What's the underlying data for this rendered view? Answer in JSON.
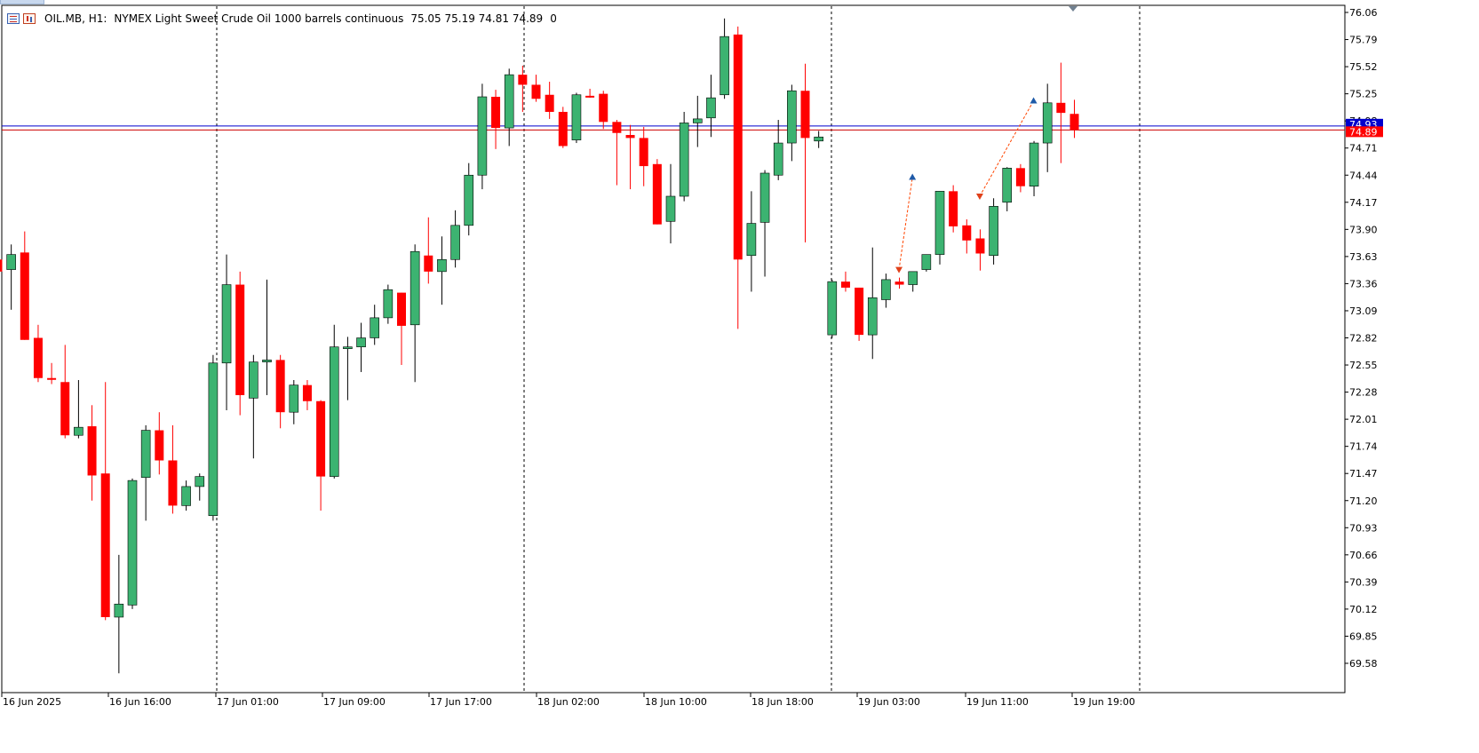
{
  "header": {
    "symbol": "OIL.MB, H1:",
    "description": "NYMEX Light Sweet Crude Oil 1000 barrels continuous",
    "ohlc": "75.05 75.19 74.81 74.89",
    "volume": "0",
    "icons": [
      "one-click-trading-icon",
      "chart-type-icon"
    ]
  },
  "colors": {
    "bull": "#3cb371",
    "bear": "#ff0000",
    "bid_line": "#0000cd",
    "ask_line": "#cd0000",
    "grid": "#000000",
    "trade_line": "#ff4500",
    "buy_arrow": "#1e5aa8",
    "sell_arrow": "#e0401a"
  },
  "chart_data": {
    "type": "candlestick",
    "timeframe": "H1",
    "symbol": "OIL.MB",
    "ylim": [
      69.34,
      76.06
    ],
    "y_ticks": [
      "76.06",
      "75.79",
      "75.52",
      "75.25",
      "74.98",
      "74.71",
      "74.44",
      "74.17",
      "73.90",
      "73.63",
      "73.36",
      "73.09",
      "72.82",
      "72.55",
      "72.28",
      "72.01",
      "71.74",
      "71.47",
      "71.20",
      "70.93",
      "70.66",
      "70.39",
      "70.12",
      "69.85",
      "69.58"
    ],
    "x_labels": [
      "16 Jun 2025",
      "16 Jun 16:00",
      "17 Jun 01:00",
      "17 Jun 09:00",
      "17 Jun 17:00",
      "18 Jun 02:00",
      "18 Jun 10:00",
      "18 Jun 18:00",
      "19 Jun 03:00",
      "19 Jun 11:00",
      "19 Jun 19:00"
    ],
    "day_separators": [
      "17 Jun",
      "18 Jun",
      "19 Jun",
      "20 Jun"
    ],
    "price_labels": {
      "ask": "74.93",
      "bid": "74.89"
    },
    "ask_price": 74.93,
    "bid_price": 74.89,
    "candles": [
      [
        73.6,
        73.76,
        73.4,
        73.48
      ],
      [
        73.5,
        73.75,
        73.1,
        73.65
      ],
      [
        73.67,
        73.88,
        72.8,
        72.8
      ],
      [
        72.82,
        72.95,
        72.38,
        72.42
      ],
      [
        72.42,
        72.57,
        72.36,
        72.41
      ],
      [
        72.38,
        72.75,
        71.82,
        71.85
      ],
      [
        71.85,
        72.4,
        71.82,
        71.93
      ],
      [
        71.94,
        72.15,
        71.2,
        71.45
      ],
      [
        71.47,
        72.38,
        70.01,
        70.04
      ],
      [
        70.04,
        70.66,
        69.48,
        70.17
      ],
      [
        70.16,
        71.42,
        70.12,
        71.4
      ],
      [
        71.43,
        71.95,
        71.0,
        71.9
      ],
      [
        71.9,
        72.08,
        71.46,
        71.6
      ],
      [
        71.6,
        71.95,
        71.07,
        71.15
      ],
      [
        71.15,
        71.4,
        71.1,
        71.34
      ],
      [
        71.34,
        71.47,
        71.2,
        71.44
      ],
      [
        71.05,
        72.65,
        71.0,
        72.57
      ],
      [
        72.57,
        73.65,
        72.1,
        73.35
      ],
      [
        73.35,
        73.48,
        72.05,
        72.25
      ],
      [
        72.22,
        72.65,
        71.62,
        72.58
      ],
      [
        72.58,
        73.4,
        72.25,
        72.6
      ],
      [
        72.6,
        72.65,
        71.92,
        72.08
      ],
      [
        72.08,
        72.4,
        71.96,
        72.35
      ],
      [
        72.35,
        72.4,
        72.1,
        72.19
      ],
      [
        72.19,
        72.2,
        71.1,
        71.44
      ],
      [
        71.44,
        72.95,
        71.42,
        72.73
      ],
      [
        72.73,
        72.83,
        72.2,
        72.73
      ],
      [
        72.73,
        72.97,
        72.48,
        72.82
      ],
      [
        72.82,
        73.15,
        72.75,
        73.02
      ],
      [
        73.02,
        73.35,
        72.96,
        73.3
      ],
      [
        73.27,
        73.25,
        72.55,
        72.94
      ],
      [
        72.95,
        73.75,
        72.38,
        73.68
      ],
      [
        73.64,
        74.02,
        73.36,
        73.48
      ],
      [
        73.48,
        73.83,
        73.15,
        73.6
      ],
      [
        73.6,
        74.09,
        73.52,
        73.94
      ],
      [
        73.94,
        74.56,
        73.84,
        74.44
      ],
      [
        74.44,
        75.35,
        74.3,
        75.22
      ],
      [
        75.22,
        75.29,
        74.7,
        74.91
      ],
      [
        74.91,
        75.5,
        74.73,
        75.44
      ],
      [
        75.44,
        75.53,
        75.07,
        75.34
      ],
      [
        75.34,
        75.44,
        75.17,
        75.2
      ],
      [
        75.24,
        75.37,
        75.0,
        75.07
      ],
      [
        75.07,
        75.12,
        74.71,
        74.73
      ],
      [
        74.79,
        75.26,
        74.76,
        75.24
      ],
      [
        75.23,
        75.3,
        75.21,
        75.22
      ],
      [
        75.25,
        75.28,
        74.9,
        74.97
      ],
      [
        74.97,
        74.99,
        74.34,
        74.86
      ],
      [
        74.84,
        74.94,
        74.3,
        74.81
      ],
      [
        74.81,
        74.92,
        74.33,
        74.53
      ],
      [
        74.55,
        74.6,
        73.97,
        73.95
      ],
      [
        73.98,
        74.55,
        73.76,
        74.23
      ],
      [
        74.23,
        75.07,
        74.18,
        74.96
      ],
      [
        74.96,
        75.23,
        74.72,
        75.0
      ],
      [
        75.01,
        75.44,
        74.82,
        75.21
      ],
      [
        75.24,
        76.0,
        75.2,
        75.82
      ],
      [
        75.84,
        75.92,
        72.91,
        73.6
      ],
      [
        73.64,
        74.28,
        73.28,
        73.96
      ],
      [
        73.97,
        74.49,
        73.43,
        74.46
      ],
      [
        74.44,
        74.99,
        74.39,
        74.76
      ],
      [
        74.76,
        75.34,
        74.58,
        75.28
      ],
      [
        75.28,
        75.55,
        73.77,
        74.81
      ],
      [
        74.78,
        74.88,
        74.71,
        74.82
      ],
      [
        72.85,
        73.4,
        72.82,
        73.38
      ],
      [
        73.38,
        73.48,
        73.28,
        73.32
      ],
      [
        73.32,
        73.3,
        72.79,
        72.85
      ],
      [
        72.85,
        73.72,
        72.61,
        73.22
      ],
      [
        73.2,
        73.46,
        73.12,
        73.4
      ],
      [
        73.38,
        73.42,
        73.31,
        73.35
      ],
      [
        73.35,
        73.45,
        73.28,
        73.48
      ],
      [
        73.5,
        73.6,
        73.48,
        73.65
      ],
      [
        73.65,
        74.23,
        73.55,
        74.28
      ],
      [
        74.28,
        74.34,
        73.87,
        73.93
      ],
      [
        73.94,
        74.0,
        73.66,
        73.79
      ],
      [
        73.81,
        73.9,
        73.49,
        73.66
      ],
      [
        73.64,
        74.21,
        73.55,
        74.13
      ],
      [
        74.17,
        74.52,
        74.08,
        74.51
      ],
      [
        74.51,
        74.55,
        74.27,
        74.33
      ],
      [
        74.33,
        74.78,
        74.23,
        74.76
      ],
      [
        74.76,
        75.35,
        74.47,
        75.16
      ],
      [
        75.16,
        75.56,
        74.56,
        75.06
      ],
      [
        75.05,
        75.19,
        74.81,
        74.89
      ]
    ],
    "trades": [
      {
        "type": "sell",
        "label": "entry",
        "index": 67,
        "price": 73.5
      },
      {
        "type": "buy",
        "label": "exit",
        "index": 68,
        "price": 74.42
      },
      {
        "type": "sell",
        "label": "entry",
        "index": 73,
        "price": 74.23
      },
      {
        "type": "buy",
        "label": "exit",
        "index": 77,
        "price": 75.18
      }
    ]
  }
}
